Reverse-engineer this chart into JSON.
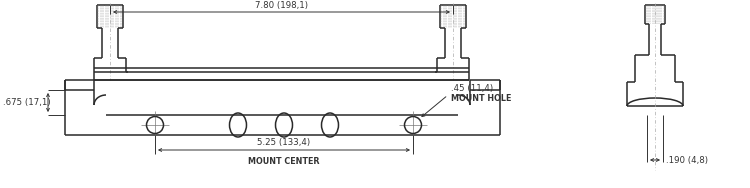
{
  "bg_color": "#ffffff",
  "line_color": "#2a2a2a",
  "dim_color": "#333333",
  "dim_780": "7.80 (198,1)",
  "dim_675": ".675 (17,1)",
  "dim_525": "5.25 (133,4)",
  "dim_45": ".45 (11,4)",
  "dim_190": ".190 (4,8)",
  "label_mount_center": "MOUNT CENTER",
  "label_mount_hole": "MOUNT HOLE",
  "figsize": [
    7.5,
    1.88
  ],
  "dpi": 100,
  "lw_part": 1.1,
  "lw_dim": 0.7,
  "lw_thin": 0.5,
  "fs_dim": 6.2,
  "fs_label": 5.8
}
